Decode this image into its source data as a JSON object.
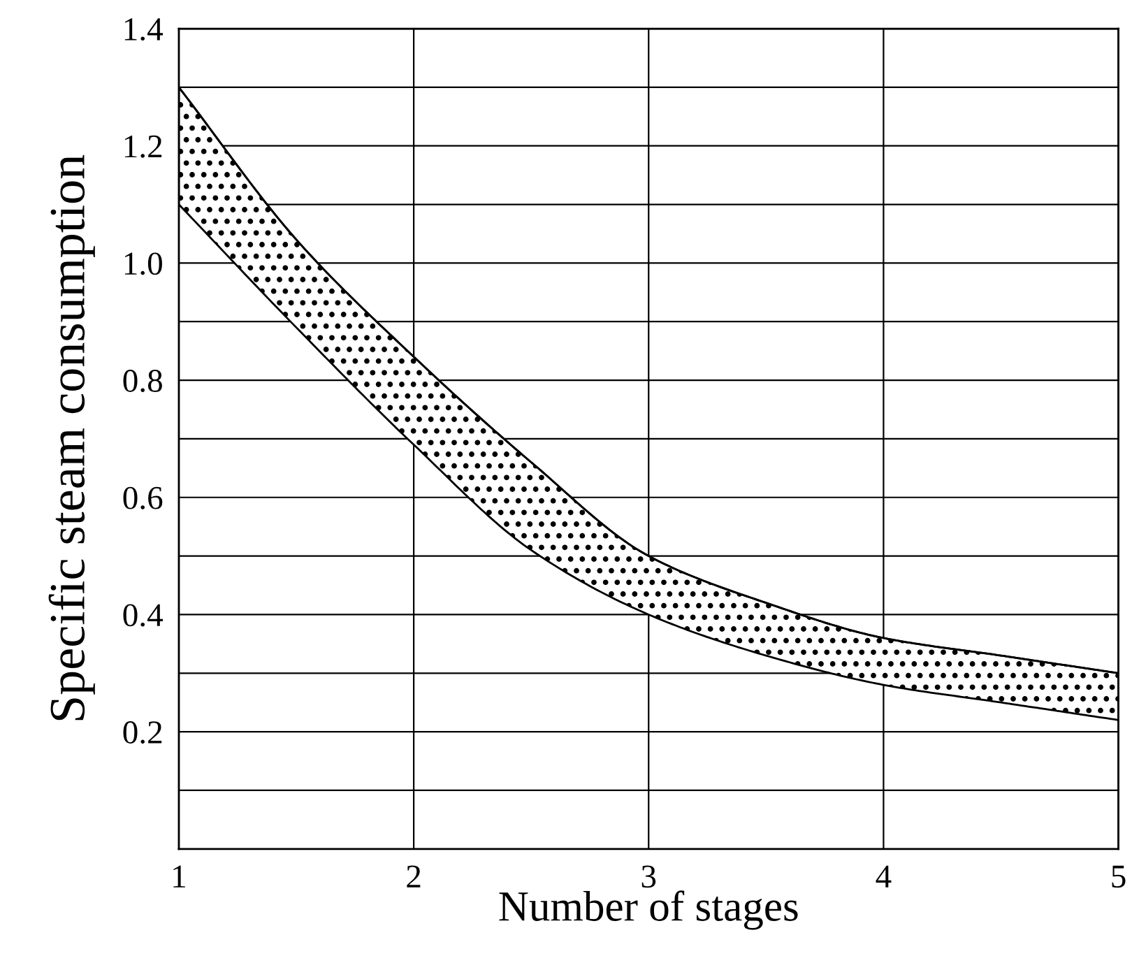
{
  "chart_data": {
    "type": "line",
    "xlabel": "Number of stages",
    "ylabel": "Specific steam consumption",
    "xlim": [
      1,
      5
    ],
    "xticks": [
      1,
      2,
      3,
      4,
      5
    ],
    "ylim": [
      0,
      1.4
    ],
    "yticks": [
      {
        "value": 0.1,
        "label": null
      },
      0.2,
      {
        "value": 0.3,
        "label": null
      },
      0.4,
      {
        "value": 0.5,
        "label": null
      },
      0.6,
      {
        "value": 0.7,
        "label": null
      },
      0.8,
      {
        "value": 0.9,
        "label": null
      },
      {
        "value": 1.0,
        "label": "1.0"
      },
      {
        "value": 1.1,
        "label": null
      },
      1.2,
      {
        "value": 1.3,
        "label": null
      },
      1.4
    ],
    "grid": true,
    "series": [
      {
        "color": "#000000",
        "x": [
          1,
          1.5,
          2,
          2.5,
          3,
          3.5,
          4,
          4.5,
          5
        ],
        "values": [
          1.3,
          1.04,
          0.84,
          0.66,
          0.5,
          0.42,
          0.36,
          0.33,
          0.3
        ],
        "lower": [
          1.1,
          0.89,
          0.69,
          0.51,
          0.4,
          0.33,
          0.28,
          0.25,
          0.22
        ],
        "upper": [
          1.3,
          1.04,
          0.84,
          0.66,
          0.5,
          0.42,
          0.36,
          0.33,
          0.3
        ]
      }
    ]
  }
}
